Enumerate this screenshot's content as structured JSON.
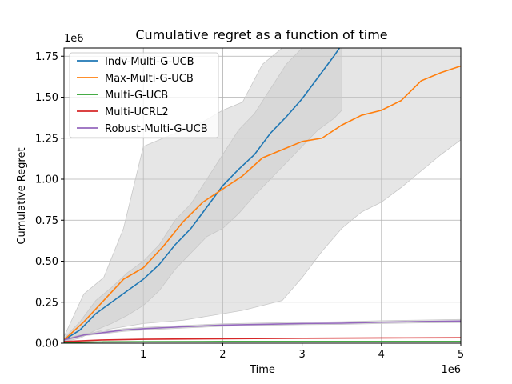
{
  "chart_data": {
    "type": "line",
    "title": "Cumulative regret as a function of time",
    "xlabel": "Time",
    "ylabel": "Cumulative Regret",
    "x_offset_label": "1e6",
    "y_offset_label": "1e6",
    "xlim": [
      0,
      5000000
    ],
    "ylim": [
      0,
      1800000
    ],
    "x_ticks": [
      1000000,
      2000000,
      3000000,
      4000000,
      5000000
    ],
    "x_tick_labels": [
      "1",
      "2",
      "3",
      "4",
      "5"
    ],
    "y_ticks": [
      0,
      250000,
      500000,
      750000,
      1000000,
      1250000,
      1500000,
      1750000
    ],
    "y_tick_labels": [
      "0.00",
      "0.25",
      "0.50",
      "0.75",
      "1.00",
      "1.25",
      "1.50",
      "1.75"
    ],
    "grid": true,
    "legend_position": "top-left",
    "band_color": "#c8c8c8",
    "series": [
      {
        "name": "Indv-Multi-G-UCB",
        "color": "#1f77b4",
        "x": [
          0,
          200000,
          400000,
          600000,
          800000,
          1000000,
          1200000,
          1400000,
          1600000,
          1800000,
          2000000,
          2200000,
          2400000,
          2600000,
          2800000,
          3000000,
          3200000,
          3400000,
          3500000
        ],
        "y": [
          20000,
          80000,
          180000,
          250000,
          320000,
          390000,
          480000,
          600000,
          700000,
          830000,
          960000,
          1060000,
          1150000,
          1280000,
          1380000,
          1490000,
          1620000,
          1750000,
          1820000
        ],
        "band_lower": [
          10000,
          30000,
          80000,
          120000,
          170000,
          230000,
          320000,
          450000,
          550000,
          650000,
          700000,
          790000,
          900000,
          1000000,
          1100000,
          1200000,
          1300000,
          1370000,
          1420000
        ],
        "band_upper": [
          30000,
          130000,
          260000,
          340000,
          430000,
          500000,
          600000,
          750000,
          850000,
          1000000,
          1150000,
          1300000,
          1400000,
          1550000,
          1700000,
          1800000,
          1800000,
          1800000,
          1800000
        ]
      },
      {
        "name": "Max-Multi-G-UCB",
        "color": "#ff7f0e",
        "x": [
          0,
          250000,
          500000,
          750000,
          1000000,
          1250000,
          1500000,
          1750000,
          2000000,
          2250000,
          2500000,
          2750000,
          3000000,
          3250000,
          3500000,
          3750000,
          4000000,
          4250000,
          4500000,
          4750000,
          5000000
        ],
        "y": [
          20000,
          130000,
          260000,
          390000,
          460000,
          590000,
          740000,
          860000,
          940000,
          1020000,
          1130000,
          1180000,
          1230000,
          1250000,
          1330000,
          1390000,
          1420000,
          1480000,
          1600000,
          1650000,
          1690000
        ],
        "band_lower": [
          10000,
          50000,
          80000,
          100000,
          120000,
          130000,
          140000,
          160000,
          180000,
          200000,
          230000,
          260000,
          400000,
          560000,
          700000,
          800000,
          860000,
          950000,
          1050000,
          1150000,
          1240000
        ],
        "band_upper": [
          40000,
          300000,
          400000,
          700000,
          1200000,
          1250000,
          1300000,
          1350000,
          1420000,
          1470000,
          1700000,
          1800000,
          1800000,
          1800000,
          1800000,
          1800000,
          1800000,
          1800000,
          1800000,
          1800000,
          1800000
        ]
      },
      {
        "name": "Multi-G-UCB",
        "color": "#2ca02c",
        "x": [
          0,
          500000,
          1000000,
          2000000,
          3000000,
          4000000,
          5000000
        ],
        "y": [
          5000,
          8000,
          9000,
          10000,
          10000,
          10000,
          10000
        ]
      },
      {
        "name": "Multi-UCRL2",
        "color": "#d62728",
        "x": [
          0,
          500000,
          1000000,
          2000000,
          3000000,
          4000000,
          5000000
        ],
        "y": [
          10000,
          20000,
          24000,
          27000,
          30000,
          32000,
          33000
        ]
      },
      {
        "name": "Robust-Multi-G-UCB",
        "color": "#9467bd",
        "x": [
          0,
          250000,
          500000,
          750000,
          1000000,
          1500000,
          2000000,
          2500000,
          3000000,
          3500000,
          4000000,
          4500000,
          5000000
        ],
        "y": [
          20000,
          50000,
          65000,
          80000,
          88000,
          100000,
          110000,
          115000,
          120000,
          122000,
          128000,
          132000,
          135000
        ],
        "band_lower": [
          15000,
          45000,
          58000,
          72000,
          80000,
          92000,
          103000,
          108000,
          113000,
          115000,
          120000,
          124000,
          126000
        ],
        "band_upper": [
          25000,
          57000,
          73000,
          88000,
          96000,
          108000,
          118000,
          123000,
          128000,
          131000,
          137000,
          141000,
          145000
        ]
      }
    ]
  }
}
